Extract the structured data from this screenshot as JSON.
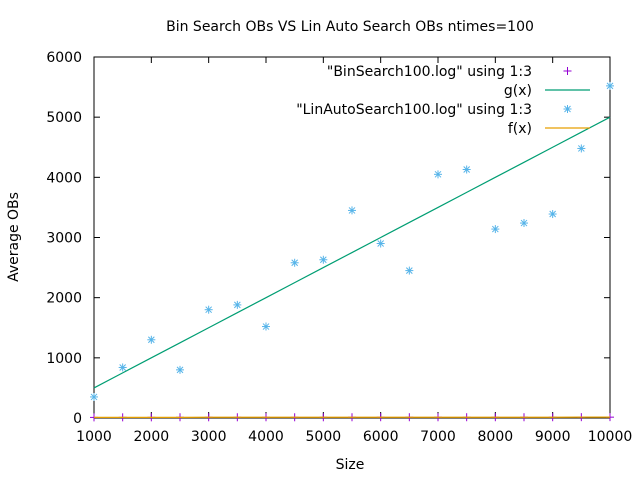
{
  "chart_data": {
    "type": "scatter",
    "title": "Bin Search OBs VS Lin Auto Search OBs ntimes=100",
    "xlabel": "Size",
    "ylabel": "Average OBs",
    "xlim": [
      1000,
      10000
    ],
    "ylim": [
      0,
      6000
    ],
    "xticks": [
      "1000",
      "2000",
      "3000",
      "4000",
      "5000",
      "6000",
      "7000",
      "8000",
      "9000",
      "10000"
    ],
    "yticks": [
      "0",
      "1000",
      "2000",
      "3000",
      "4000",
      "5000",
      "6000"
    ],
    "grid": false,
    "legend_position": "top-right",
    "series": [
      {
        "name": "\"BinSearch100.log\" using 1:3",
        "marker": "+",
        "color": "#9400d3",
        "x": [
          1000,
          1500,
          2000,
          2500,
          3000,
          3500,
          4000,
          4500,
          5000,
          5500,
          6000,
          6500,
          7000,
          7500,
          8000,
          8500,
          9000,
          9500,
          10000
        ],
        "y": [
          10,
          11,
          11,
          12,
          12,
          12,
          12,
          12,
          12,
          13,
          13,
          13,
          13,
          13,
          13,
          13,
          13,
          14,
          14
        ]
      },
      {
        "name": "g(x)",
        "style": "line",
        "color": "#009e73",
        "x": [
          1000,
          1500,
          2000,
          2500,
          3000,
          3500,
          4000,
          4500,
          5000,
          5500,
          6000,
          6500,
          7000,
          7500,
          8000,
          8500,
          9000,
          9500,
          10000
        ],
        "y": [
          500,
          750,
          1000,
          1250,
          1500,
          1750,
          2000,
          2250,
          2500,
          2750,
          3000,
          3250,
          3500,
          3750,
          4000,
          4250,
          4500,
          4750,
          5000
        ]
      },
      {
        "name": "\"LinAutoSearch100.log\" using 1:3",
        "marker": "*",
        "color": "#56b4e9",
        "x": [
          1000,
          1500,
          2000,
          2500,
          3000,
          3500,
          4000,
          4500,
          5000,
          5500,
          6000,
          6500,
          7000,
          7500,
          8000,
          8500,
          9000,
          9500,
          10000
        ],
        "y": [
          350,
          840,
          1300,
          800,
          1800,
          1880,
          1520,
          2580,
          2630,
          3450,
          2900,
          2450,
          4050,
          4130,
          3140,
          3240,
          3390,
          4480,
          5520
        ]
      },
      {
        "name": "f(x)",
        "style": "line",
        "color": "#e69f00",
        "x": [
          1000,
          1500,
          2000,
          2500,
          3000,
          3500,
          4000,
          4500,
          5000,
          5500,
          6000,
          6500,
          7000,
          7500,
          8000,
          8500,
          9000,
          9500,
          10000
        ],
        "y": [
          10,
          11,
          11,
          11,
          12,
          12,
          12,
          12,
          12,
          12,
          13,
          13,
          13,
          13,
          13,
          13,
          13,
          14,
          14
        ]
      }
    ]
  }
}
